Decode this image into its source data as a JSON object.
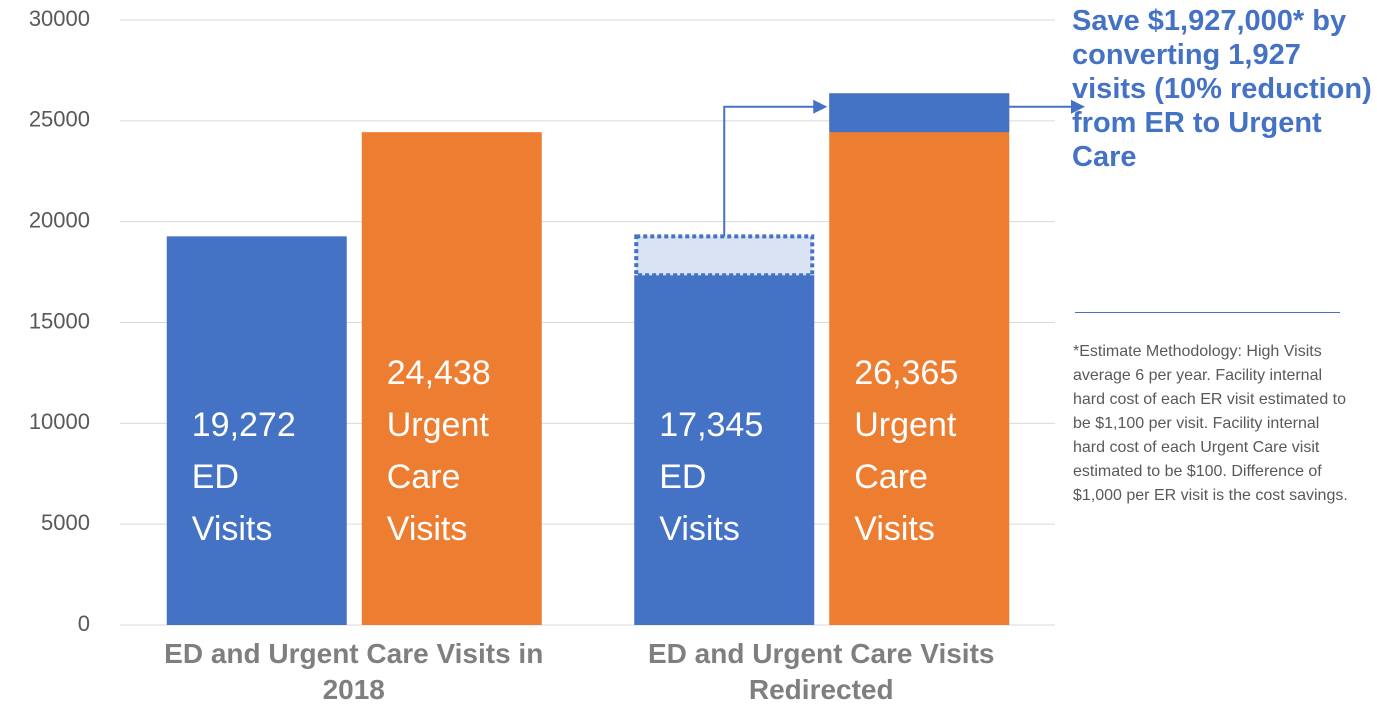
{
  "chart_data": {
    "type": "bar",
    "categories": [
      "ED and Urgent Care Visits in 2018",
      "ED and Urgent Care Visits Redirected"
    ],
    "series": [
      {
        "name": "ED Visits",
        "color": "#4472c4",
        "values": [
          19272,
          17345
        ],
        "value_labels": [
          "19,272",
          "17,345"
        ]
      },
      {
        "name": "Urgent Care Visits",
        "color": "#ed7d31",
        "values": [
          24438,
          26365
        ],
        "value_labels": [
          "24,438",
          "26,365"
        ]
      }
    ],
    "converted": 1927,
    "converted_color": "#4472c4",
    "converted_fill": "#dae3f3",
    "ylim": [
      0,
      30000
    ],
    "yticks": [
      0,
      5000,
      10000,
      15000,
      20000,
      25000,
      30000
    ],
    "grid": true,
    "annotation": "Save $1,927,000* by converting 1,927 visits (10% reduction) from ER to Urgent Care",
    "footnote": "*Estimate Methodology: High Visits average 6 per year. Facility internal hard cost of each ER visit estimated to be $1,100 per visit. Facility internal hard cost of each Urgent Care visit estimated to be $100.  Difference of $1,000 per ER visit is the cost savings."
  }
}
